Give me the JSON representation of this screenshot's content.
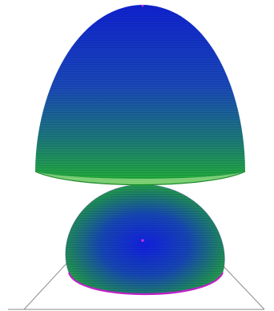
{
  "figure": {
    "description_free": true,
    "colors": {
      "background": "#ffffff",
      "surface_top": "#1020c8",
      "surface_mid": "#1a5aa8",
      "surface_edge": "#22b02a",
      "rim_highlight": "#c8f0a8",
      "boundary_curve": "#c020c8",
      "center_point": "#e030e0",
      "outline": "#8a8a8a",
      "mesh_line": "#0a1a60"
    }
  }
}
